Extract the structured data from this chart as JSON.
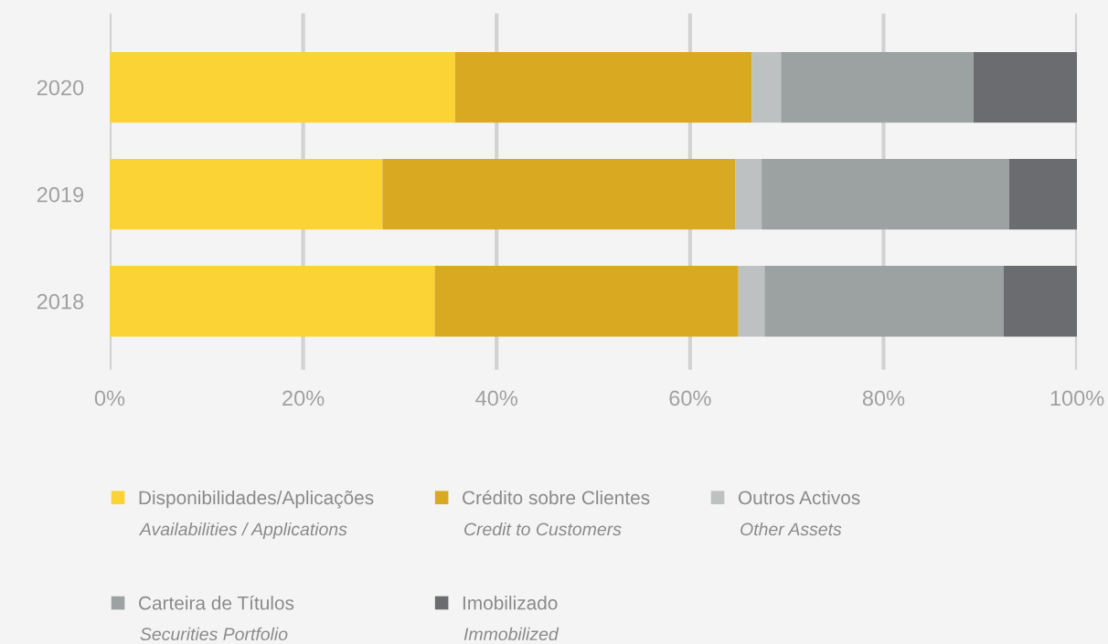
{
  "chart_data": {
    "type": "bar",
    "orientation": "horizontal",
    "stacked": true,
    "categories": [
      "2020",
      "2019",
      "2018"
    ],
    "series": [
      {
        "name": "Disponibilidades/Aplicações",
        "color": "#fbd334",
        "values": [
          35.7,
          28.2,
          33.6
        ]
      },
      {
        "name": "Crédito sobre Clientes",
        "color": "#d9a921",
        "values": [
          30.7,
          36.5,
          31.4
        ]
      },
      {
        "name": "Outros Activos",
        "color": "#bec1c1",
        "values": [
          3.0,
          2.7,
          2.7
        ]
      },
      {
        "name": "Carteira de Títulos",
        "color": "#9ca2a1",
        "values": [
          19.9,
          25.6,
          24.7
        ]
      },
      {
        "name": "Imobilizado",
        "color": "#6b6c6f",
        "values": [
          10.7,
          7.0,
          7.6
        ]
      }
    ],
    "annotations": [
      "Availabilities / Applications",
      "Credit to Customers",
      "Other Assets",
      "Securities Portfolio",
      "Immobilized"
    ],
    "xlim": [
      0,
      100
    ],
    "xticks": [
      {
        "value": 0,
        "label": "0%"
      },
      {
        "value": 20,
        "label": "20%"
      },
      {
        "value": 40,
        "label": "40%"
      },
      {
        "value": 60,
        "label": "60%"
      },
      {
        "value": 80,
        "label": "80%"
      },
      {
        "value": 100,
        "label": "100%"
      }
    ],
    "grid": "x",
    "legend": "bottom"
  }
}
